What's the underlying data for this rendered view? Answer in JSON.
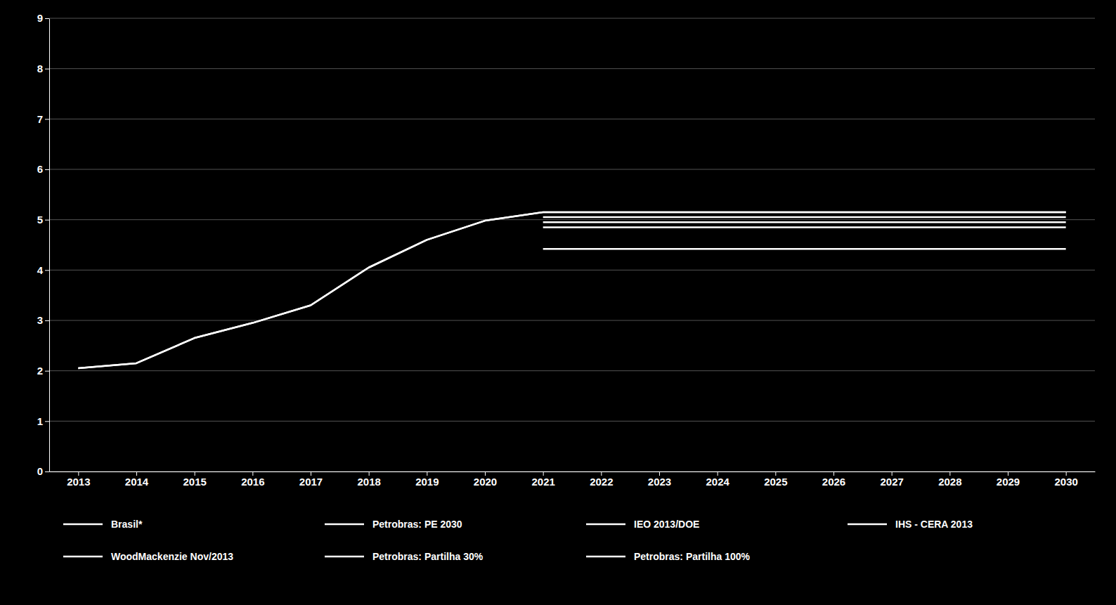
{
  "chart_data": {
    "type": "line",
    "x": [
      2013,
      2014,
      2015,
      2016,
      2017,
      2018,
      2019,
      2020,
      2021,
      2022,
      2023,
      2024,
      2025,
      2026,
      2027,
      2028,
      2029,
      2030
    ],
    "series": [
      {
        "name": "Brasil*",
        "color": "#ffffff",
        "values": [
          2.05,
          2.15,
          2.65,
          2.95,
          3.3,
          4.05,
          4.6,
          4.98,
          5.15,
          null,
          null,
          null,
          null,
          null,
          null,
          null,
          null,
          null
        ]
      },
      {
        "name": "WoodMackenzie Nov/2013",
        "color": "#ffffff",
        "values": [
          2.05,
          2.15,
          2.65,
          2.95,
          3.3,
          4.05,
          4.6,
          4.98,
          5.15,
          5.15,
          5.15,
          5.15,
          5.15,
          5.15,
          5.15,
          5.15,
          5.15,
          5.15
        ]
      },
      {
        "name": "Petrobras: PE 2030",
        "color": "#ffffff",
        "values": [
          null,
          null,
          null,
          null,
          null,
          null,
          null,
          null,
          5.15,
          5.15,
          5.15,
          5.15,
          5.15,
          5.15,
          5.15,
          5.15,
          5.15,
          5.15
        ]
      },
      {
        "name": "Petrobras: Partilha 30%",
        "color": "#ffffff",
        "values": [
          null,
          null,
          null,
          null,
          null,
          null,
          null,
          null,
          5.05,
          5.05,
          5.05,
          5.05,
          5.05,
          5.05,
          5.05,
          5.05,
          5.05,
          5.05
        ]
      },
      {
        "name": "IEO 2013/DOE",
        "color": "#ffffff",
        "values": [
          null,
          null,
          null,
          null,
          null,
          null,
          null,
          null,
          4.95,
          4.95,
          4.95,
          4.95,
          4.95,
          4.95,
          4.95,
          4.95,
          4.95,
          4.95
        ]
      },
      {
        "name": "Petrobras: Partilha 100%",
        "color": "#ffffff",
        "values": [
          null,
          null,
          null,
          null,
          null,
          null,
          null,
          null,
          4.85,
          4.85,
          4.85,
          4.85,
          4.85,
          4.85,
          4.85,
          4.85,
          4.85,
          4.85
        ]
      },
      {
        "name": "IHS - CERA 2013",
        "color": "#ffffff",
        "values": [
          null,
          null,
          null,
          null,
          null,
          null,
          null,
          null,
          4.42,
          4.42,
          4.42,
          4.42,
          4.42,
          4.42,
          4.42,
          4.42,
          4.42,
          4.42
        ]
      }
    ],
    "xlim": [
      2012.5,
      2030.5
    ],
    "ylim": [
      0,
      9
    ],
    "xticks": [
      2013,
      2014,
      2015,
      2016,
      2017,
      2018,
      2019,
      2020,
      2021,
      2022,
      2023,
      2024,
      2025,
      2026,
      2027,
      2028,
      2029,
      2030
    ],
    "yticks": [
      0,
      1,
      2,
      3,
      4,
      5,
      6,
      7,
      8,
      9
    ],
    "grid": true
  }
}
